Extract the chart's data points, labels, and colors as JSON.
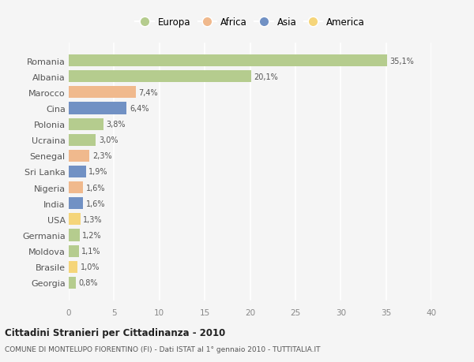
{
  "categories": [
    "Romania",
    "Albania",
    "Marocco",
    "Cina",
    "Polonia",
    "Ucraina",
    "Senegal",
    "Sri Lanka",
    "Nigeria",
    "India",
    "USA",
    "Germania",
    "Moldova",
    "Brasile",
    "Georgia"
  ],
  "values": [
    35.1,
    20.1,
    7.4,
    6.4,
    3.8,
    3.0,
    2.3,
    1.9,
    1.6,
    1.6,
    1.3,
    1.2,
    1.1,
    1.0,
    0.8
  ],
  "labels": [
    "35,1%",
    "20,1%",
    "7,4%",
    "6,4%",
    "3,8%",
    "3,0%",
    "2,3%",
    "1,9%",
    "1,6%",
    "1,6%",
    "1,3%",
    "1,2%",
    "1,1%",
    "1,0%",
    "0,8%"
  ],
  "continents": [
    "Europa",
    "Europa",
    "Africa",
    "Asia",
    "Europa",
    "Europa",
    "Africa",
    "Asia",
    "Africa",
    "Asia",
    "America",
    "Europa",
    "Europa",
    "America",
    "Europa"
  ],
  "continent_colors": {
    "Europa": "#b5cc8e",
    "Africa": "#f0b98d",
    "Asia": "#7191c4",
    "America": "#f5d57a"
  },
  "legend_order": [
    "Europa",
    "Africa",
    "Asia",
    "America"
  ],
  "xlim": [
    0,
    40
  ],
  "xticks": [
    0,
    5,
    10,
    15,
    20,
    25,
    30,
    35,
    40
  ],
  "title": "Cittadini Stranieri per Cittadinanza - 2010",
  "subtitle": "COMUNE DI MONTELUPO FIORENTINO (FI) - Dati ISTAT al 1° gennaio 2010 - TUTTITALIA.IT",
  "bg_color": "#f5f5f5",
  "grid_color": "#ffffff",
  "bar_height": 0.75
}
